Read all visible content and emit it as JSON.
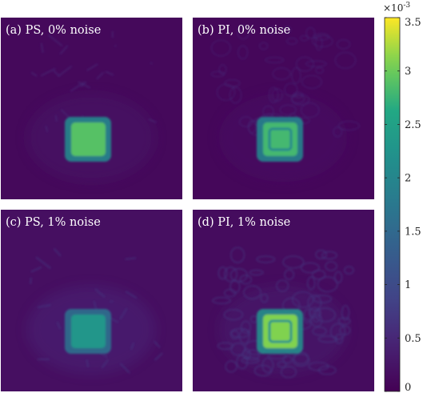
{
  "chart_data": {
    "type": "heatmap",
    "panels": [
      {
        "id": "a",
        "title": "(a) PS, 0% noise",
        "method": "PS",
        "noise_percent": 0,
        "peak_value": 2.9,
        "background_value": 0.25,
        "texture": "smooth"
      },
      {
        "id": "b",
        "title": "(b) PI, 0% noise",
        "method": "PI",
        "noise_percent": 0,
        "peak_value": 2.8,
        "background_value": 0.2,
        "texture": "ringing"
      },
      {
        "id": "c",
        "title": "(c) PS, 1% noise",
        "method": "PS",
        "noise_percent": 1,
        "peak_value": 2.3,
        "background_value": 0.45,
        "texture": "streaky"
      },
      {
        "id": "d",
        "title": "(d) PI, 1% noise",
        "method": "PI",
        "noise_percent": 1,
        "peak_value": 3.1,
        "background_value": 0.35,
        "texture": "ringing-strong"
      }
    ],
    "colorbar": {
      "colormap": "viridis",
      "clim": [
        0,
        3.5
      ],
      "ticks": [
        0,
        0.5,
        1,
        1.5,
        2,
        2.5,
        3,
        3.5
      ],
      "tick_labels": [
        "0",
        "0.5",
        "1",
        "1.5",
        "2",
        "2.5",
        "3",
        "3.5"
      ],
      "scale_exponent_base": "×10",
      "scale_exponent": "-3"
    }
  }
}
